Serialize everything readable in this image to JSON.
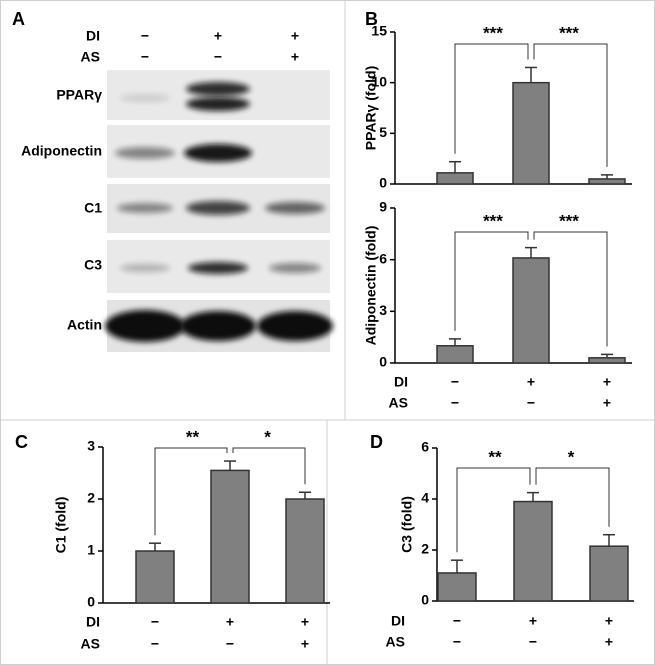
{
  "blot": {
    "panel": "A",
    "conditions": [
      {
        "name": "DI",
        "values": [
          "−",
          "+",
          "+"
        ]
      },
      {
        "name": "AS",
        "values": [
          "−",
          "−",
          "+"
        ]
      }
    ],
    "rows": [
      "PPARγ",
      "Adiponectin",
      "C1",
      "C3",
      "Actin"
    ]
  },
  "chart_data": [
    {
      "type": "bar",
      "panel": "B",
      "ylabel": "PPARγ (fold)",
      "values": [
        1.1,
        10,
        0.5
      ],
      "errors": [
        1.1,
        1.5,
        0.4
      ],
      "color": "#808080",
      "ylim": [
        0,
        15
      ],
      "yticks": [
        0,
        5,
        10,
        15
      ],
      "significance": [
        "***",
        "***"
      ]
    },
    {
      "type": "bar",
      "ylabel": "Adiponectin (fold)",
      "values": [
        1.0,
        6.1,
        0.3
      ],
      "errors": [
        0.4,
        0.6,
        0.2
      ],
      "color": "#808080",
      "ylim": [
        0,
        9
      ],
      "yticks": [
        0,
        3,
        6,
        9
      ],
      "significance": [
        "***",
        "***"
      ],
      "conditions": [
        {
          "name": "DI",
          "values": [
            "−",
            "+",
            "+"
          ]
        },
        {
          "name": "AS",
          "values": [
            "−",
            "−",
            "+"
          ]
        }
      ]
    },
    {
      "type": "bar",
      "panel": "C",
      "ylabel": "C1 (fold)",
      "values": [
        1.0,
        2.55,
        2.0
      ],
      "errors": [
        0.15,
        0.18,
        0.13
      ],
      "color": "#808080",
      "ylim": [
        0,
        3
      ],
      "yticks": [
        0,
        1,
        2,
        3
      ],
      "significance": [
        "**",
        "*"
      ],
      "conditions": [
        {
          "name": "DI",
          "values": [
            "−",
            "+",
            "+"
          ]
        },
        {
          "name": "AS",
          "values": [
            "−",
            "−",
            "+"
          ]
        }
      ]
    },
    {
      "type": "bar",
      "panel": "D",
      "ylabel": "C3 (fold)",
      "values": [
        1.1,
        3.9,
        2.15
      ],
      "errors": [
        0.5,
        0.35,
        0.45
      ],
      "color": "#808080",
      "ylim": [
        0,
        6
      ],
      "yticks": [
        0,
        2,
        4,
        6
      ],
      "significance": [
        "**",
        "*"
      ],
      "conditions": [
        {
          "name": "DI",
          "values": [
            "−",
            "+",
            "+"
          ]
        },
        {
          "name": "AS",
          "values": [
            "−",
            "−",
            "+"
          ]
        }
      ]
    }
  ]
}
